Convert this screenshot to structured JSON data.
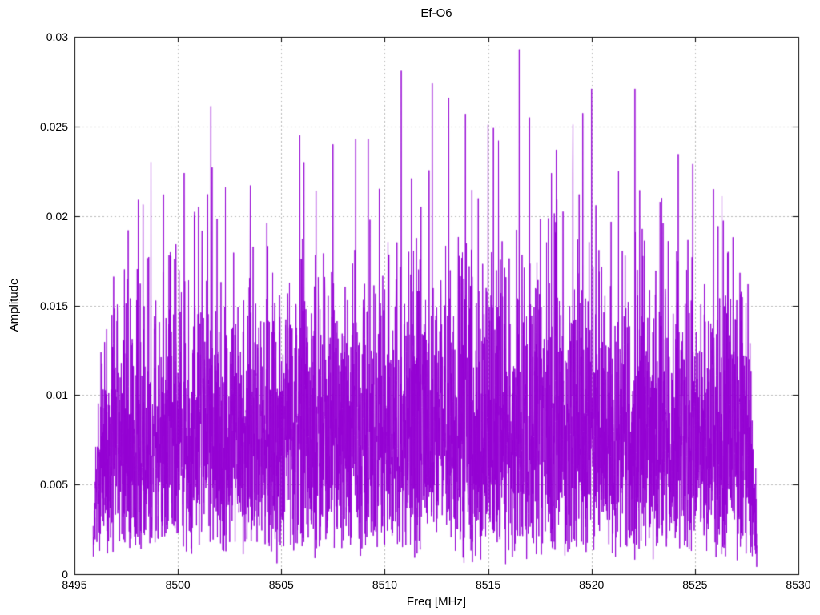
{
  "page": {
    "background": "#ffffff",
    "kind": "gnuplot-style spectrum plot"
  },
  "chart_data": {
    "type": "line",
    "style": "dense noise-like amplitude spectrum drawn as a single thin polyline",
    "title": "Ef-O6",
    "xlabel": "Freq [MHz]",
    "ylabel": "Amplitude",
    "xlim": [
      8495,
      8530
    ],
    "ylim": [
      0,
      0.03
    ],
    "x_tick_values": [
      8495,
      8500,
      8505,
      8510,
      8515,
      8520,
      8525,
      8530
    ],
    "x_tick_labels": [
      "8495",
      "8500",
      "8505",
      "8510",
      "8515",
      "8520",
      "8525",
      "8530"
    ],
    "y_tick_values": [
      0,
      0.005,
      0.01,
      0.015,
      0.02,
      0.025,
      0.03
    ],
    "y_tick_labels": [
      "0",
      "0.005",
      "0.01",
      "0.015",
      "0.02",
      "0.025",
      "0.03"
    ],
    "grid": true,
    "legend": "none",
    "colors": {
      "series": "#9400d3",
      "grid": "#b8b8b8",
      "border": "#000000",
      "text": "#000000"
    },
    "signal_band_mhz": [
      8495.9,
      8528.0
    ],
    "baseline": {
      "dense_mass_amplitude_range": [
        0.002,
        0.015
      ],
      "median_amplitude": 0.0078,
      "max_amplitude": 0.0293
    },
    "peaks": [
      [
        8497.6,
        0.0192
      ],
      [
        8498.7,
        0.023
      ],
      [
        8499.3,
        0.0212
      ],
      [
        8500.3,
        0.0224
      ],
      [
        8501.0,
        0.0205
      ],
      [
        8502.3,
        0.0216
      ],
      [
        8503.5,
        0.0217
      ],
      [
        8504.3,
        0.0196
      ],
      [
        8505.9,
        0.0245
      ],
      [
        8506.1,
        0.023
      ],
      [
        8507.5,
        0.024
      ],
      [
        8508.6,
        0.0243
      ],
      [
        8509.2,
        0.0243
      ],
      [
        8510.8,
        0.0281
      ],
      [
        8511.3,
        0.0221
      ],
      [
        8512.3,
        0.0274
      ],
      [
        8513.1,
        0.0266
      ],
      [
        8513.9,
        0.0257
      ],
      [
        8515.0,
        0.0251
      ],
      [
        8515.5,
        0.0242
      ],
      [
        8516.5,
        0.0293
      ],
      [
        8517.0,
        0.0255
      ],
      [
        8518.3,
        0.0237
      ],
      [
        8519.1,
        0.0251
      ],
      [
        8520.0,
        0.0271
      ],
      [
        8521.3,
        0.0225
      ],
      [
        8522.1,
        0.0271
      ],
      [
        8523.4,
        0.021
      ],
      [
        8524.9,
        0.0229
      ],
      [
        8525.9,
        0.0215
      ],
      [
        8526.3,
        0.0211
      ]
    ],
    "generator": {
      "seed": 1337,
      "n_points": 4200,
      "sigma": 0.0063,
      "floor": 0.0005,
      "edge_taper_mhz": 0.45,
      "clip_max": 0.0295,
      "arch": 0.1
    }
  }
}
